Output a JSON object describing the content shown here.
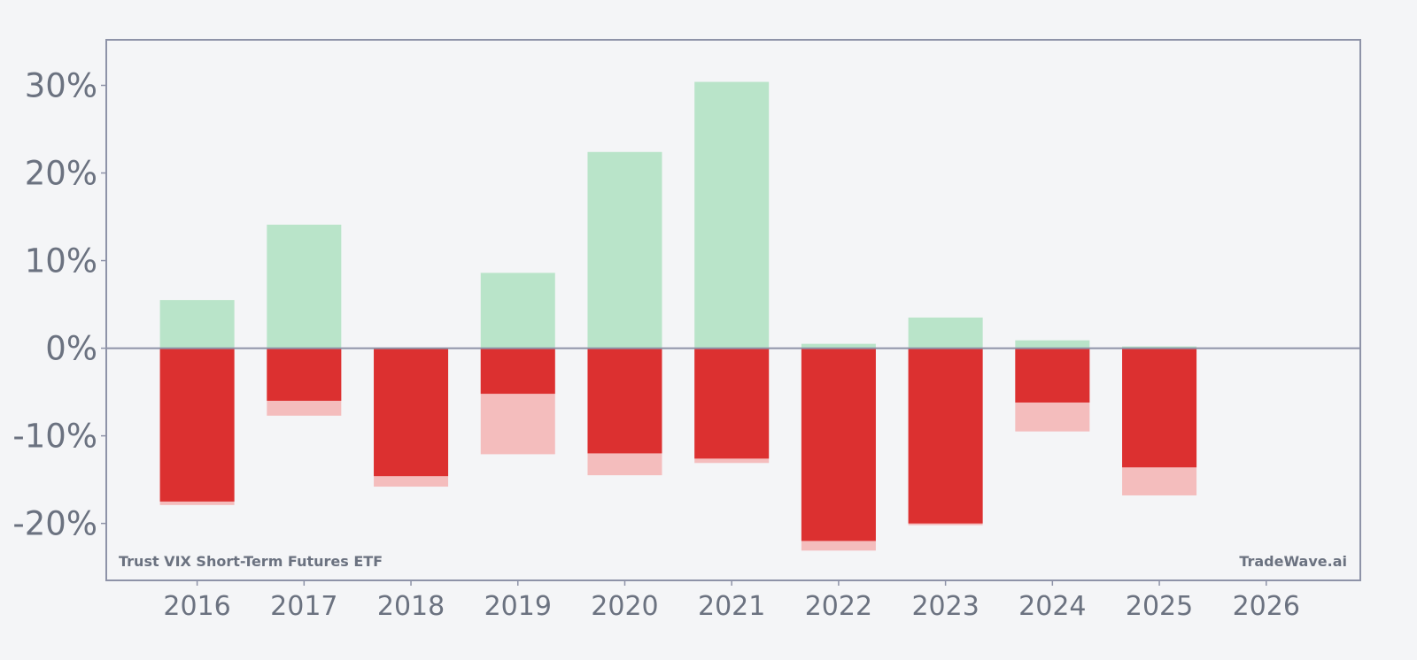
{
  "chart_data": {
    "type": "bar",
    "title": "",
    "xlabel": "",
    "ylabel": "",
    "categories": [
      "2016",
      "2017",
      "2018",
      "2019",
      "2020",
      "2021",
      "2022",
      "2023",
      "2024",
      "2025",
      "2026"
    ],
    "y_tick_labels": [
      "30%",
      "20%",
      "10%",
      "0%",
      "-10%",
      "-20%"
    ],
    "y_tick_values": [
      30,
      20,
      10,
      0,
      -10,
      -20
    ],
    "ylim": [
      -26.5,
      35.2
    ],
    "xlim": [
      2015.15,
      2026.88
    ],
    "grid": false,
    "series": [
      {
        "role": "gain",
        "color": "#b9e4c9",
        "values": [
          5.5,
          14.1,
          0,
          8.6,
          22.4,
          30.4,
          0.5,
          3.5,
          0.9,
          0.2,
          null
        ]
      },
      {
        "role": "loss",
        "color": "#dc3030",
        "values": [
          -17.5,
          -6.0,
          -14.6,
          -5.2,
          -12.0,
          -12.6,
          -22.0,
          -20.0,
          -6.2,
          -13.6,
          null
        ]
      },
      {
        "role": "loss-extent",
        "color": "#f4bdbd",
        "values": [
          -17.9,
          -7.7,
          -15.8,
          -12.1,
          -14.5,
          -13.1,
          -23.1,
          -20.2,
          -9.5,
          -16.8,
          null
        ]
      }
    ],
    "zero_line_color": "#8e93a8",
    "axis_color": "#8e93a8",
    "text_color": "#6b7280"
  },
  "footer": {
    "left_label": "Trust VIX Short-Term Futures ETF",
    "right_label": "TradeWave.ai"
  }
}
